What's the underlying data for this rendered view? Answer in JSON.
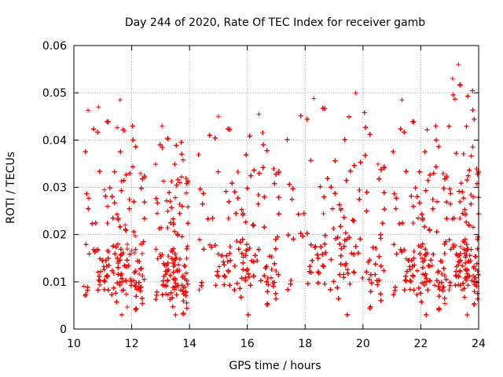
{
  "chart_data": {
    "type": "scatter",
    "title": "Day 244 of 2020, Rate Of TEC Index for receiver gamb",
    "xlabel": "GPS time / hours",
    "ylabel": "ROTI / TECUs",
    "xlim": [
      10,
      24
    ],
    "ylim": [
      0,
      0.06
    ],
    "grid": true,
    "marker": "+",
    "color": "#ff0000",
    "xticks": [
      10,
      12,
      14,
      16,
      18,
      20,
      22,
      24
    ],
    "xtick_labels": [
      "10",
      "12",
      "14",
      "16",
      "18",
      "20",
      "22",
      "24"
    ],
    "yticks": [
      0,
      0.01,
      0.02,
      0.03,
      0.04,
      0.05,
      0.06
    ],
    "ytick_labels": [
      "0",
      "0.01",
      "0.02",
      "0.03",
      "0.04",
      "0.05",
      "0.06"
    ],
    "data_segments": [
      {
        "x_start": 10.35,
        "x_end": 12.45,
        "base": 0.011,
        "spread": 0.004,
        "peak": 0.047
      },
      {
        "x_start": 12.8,
        "x_end": 13.95,
        "base": 0.01,
        "spread": 0.004,
        "peak": 0.043
      },
      {
        "x_start": 14.25,
        "x_end": 17.1,
        "base": 0.012,
        "spread": 0.004,
        "peak": 0.045
      },
      {
        "x_start": 17.3,
        "x_end": 20.75,
        "base": 0.013,
        "spread": 0.005,
        "peak": 0.05
      },
      {
        "x_start": 21.0,
        "x_end": 22.9,
        "base": 0.011,
        "spread": 0.004,
        "peak": 0.047
      },
      {
        "x_start": 22.95,
        "x_end": 24.0,
        "base": 0.012,
        "spread": 0.004,
        "peak": 0.056
      }
    ],
    "notable_points": [
      {
        "x": 10.85,
        "y": 0.047
      },
      {
        "x": 11.6,
        "y": 0.0485
      },
      {
        "x": 13.05,
        "y": 0.043
      },
      {
        "x": 15.0,
        "y": 0.045
      },
      {
        "x": 16.4,
        "y": 0.0455
      },
      {
        "x": 18.3,
        "y": 0.0488
      },
      {
        "x": 19.75,
        "y": 0.05
      },
      {
        "x": 21.35,
        "y": 0.0485
      },
      {
        "x": 23.1,
        "y": 0.053
      },
      {
        "x": 23.3,
        "y": 0.056
      }
    ]
  }
}
